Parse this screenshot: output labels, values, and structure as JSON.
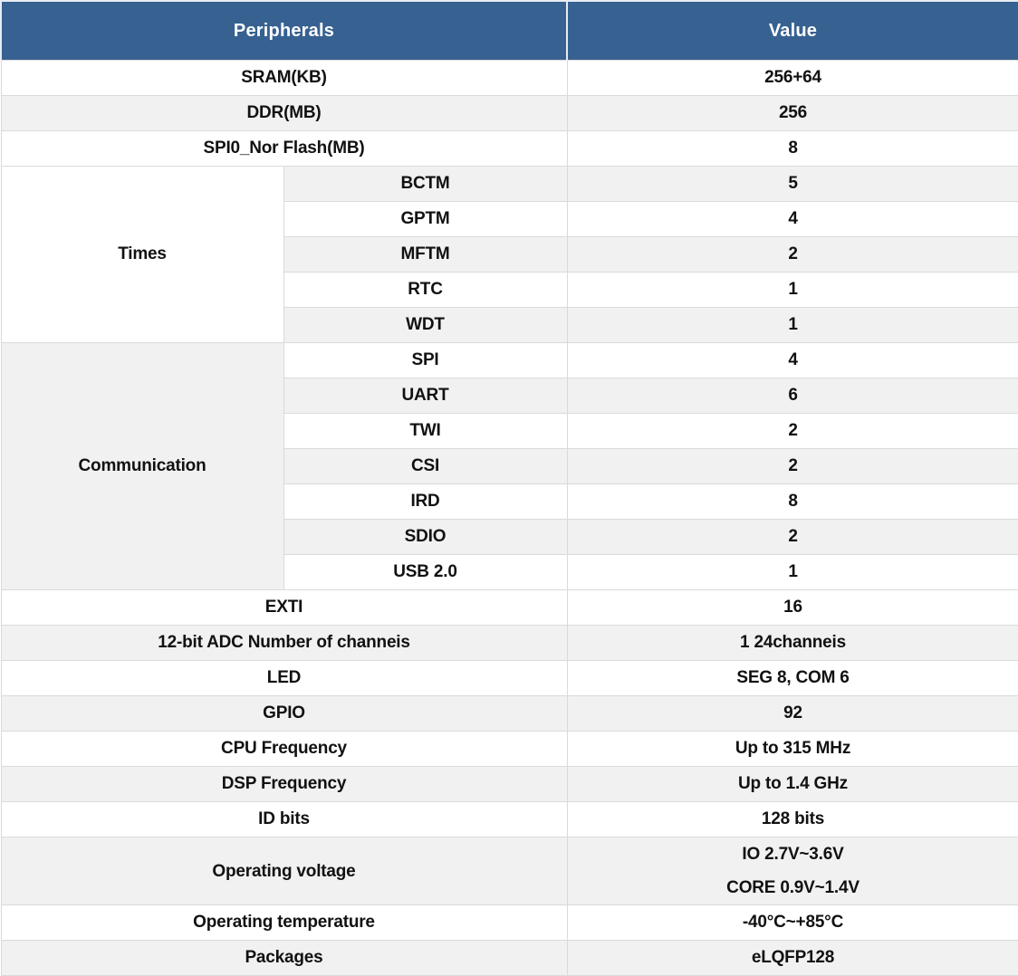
{
  "table": {
    "header": {
      "peripherals_label": "Peripherals",
      "value_label": "Value"
    },
    "rows": [
      {
        "shade": false,
        "cells": [
          {
            "text": "SRAM(KB)",
            "colspan": 2,
            "name": "row-label-sram"
          },
          {
            "text": "256+64",
            "name": "value-cell"
          }
        ]
      },
      {
        "shade": true,
        "cells": [
          {
            "text": "DDR(MB)",
            "colspan": 2,
            "name": "row-label-ddr"
          },
          {
            "text": "256",
            "name": "value-cell"
          }
        ]
      },
      {
        "shade": false,
        "cells": [
          {
            "text": "SPI0_Nor Flash(MB)",
            "colspan": 2,
            "name": "row-label-spi0-nor-flash"
          },
          {
            "text": "8",
            "name": "value-cell"
          }
        ]
      },
      {
        "shade": true,
        "cells": [
          {
            "text": "Times",
            "rowspan": 5,
            "bg": "white",
            "name": "group-cell-times"
          },
          {
            "text": "BCTM",
            "name": "row-label-bctm"
          },
          {
            "text": "5",
            "name": "value-cell"
          }
        ]
      },
      {
        "shade": false,
        "cells": [
          {
            "text": "GPTM",
            "name": "row-label-gptm"
          },
          {
            "text": "4",
            "name": "value-cell"
          }
        ]
      },
      {
        "shade": true,
        "cells": [
          {
            "text": "MFTM",
            "name": "row-label-mftm"
          },
          {
            "text": "2",
            "name": "value-cell"
          }
        ]
      },
      {
        "shade": false,
        "cells": [
          {
            "text": "RTC",
            "name": "row-label-rtc"
          },
          {
            "text": "1",
            "name": "value-cell"
          }
        ]
      },
      {
        "shade": true,
        "cells": [
          {
            "text": "WDT",
            "name": "row-label-wdt"
          },
          {
            "text": "1",
            "name": "value-cell"
          }
        ]
      },
      {
        "shade": false,
        "cells": [
          {
            "text": "Communication",
            "rowspan": 7,
            "bg": "gray",
            "name": "group-cell-communication"
          },
          {
            "text": "SPI",
            "name": "row-label-spi"
          },
          {
            "text": "4",
            "name": "value-cell"
          }
        ]
      },
      {
        "shade": true,
        "cells": [
          {
            "text": "UART",
            "name": "row-label-uart"
          },
          {
            "text": "6",
            "name": "value-cell"
          }
        ]
      },
      {
        "shade": false,
        "cells": [
          {
            "text": "TWI",
            "name": "row-label-twi"
          },
          {
            "text": "2",
            "name": "value-cell"
          }
        ]
      },
      {
        "shade": true,
        "cells": [
          {
            "text": "CSI",
            "name": "row-label-csi"
          },
          {
            "text": "2",
            "name": "value-cell"
          }
        ]
      },
      {
        "shade": false,
        "cells": [
          {
            "text": "IRD",
            "name": "row-label-ird"
          },
          {
            "text": "8",
            "name": "value-cell"
          }
        ]
      },
      {
        "shade": true,
        "cells": [
          {
            "text": "SDIO",
            "name": "row-label-sdio"
          },
          {
            "text": "2",
            "name": "value-cell"
          }
        ]
      },
      {
        "shade": false,
        "cells": [
          {
            "text": "USB 2.0",
            "name": "row-label-usb"
          },
          {
            "text": "1",
            "name": "value-cell"
          }
        ]
      },
      {
        "shade": false,
        "cells": [
          {
            "text": "EXTI",
            "colspan": 2,
            "name": "row-label-exti"
          },
          {
            "text": "16",
            "name": "value-cell"
          }
        ]
      },
      {
        "shade": true,
        "cells": [
          {
            "text": "12-bit ADC Number of channeis",
            "colspan": 2,
            "name": "row-label-adc-channels"
          },
          {
            "text": "1 24channeis",
            "name": "value-cell"
          }
        ]
      },
      {
        "shade": false,
        "cells": [
          {
            "text": "LED",
            "colspan": 2,
            "name": "row-label-led"
          },
          {
            "text": "SEG 8, COM 6",
            "name": "value-cell"
          }
        ]
      },
      {
        "shade": true,
        "cells": [
          {
            "text": "GPIO",
            "colspan": 2,
            "name": "row-label-gpio"
          },
          {
            "text": "92",
            "name": "value-cell"
          }
        ]
      },
      {
        "shade": false,
        "cells": [
          {
            "text": "CPU Frequency",
            "colspan": 2,
            "name": "row-label-cpu-frequency"
          },
          {
            "text": "Up to 315 MHz",
            "name": "value-cell"
          }
        ]
      },
      {
        "shade": true,
        "cells": [
          {
            "text": "DSP Frequency",
            "colspan": 2,
            "name": "row-label-dsp-frequency"
          },
          {
            "text": "Up to 1.4 GHz",
            "name": "value-cell"
          }
        ]
      },
      {
        "shade": false,
        "cells": [
          {
            "text": "ID bits",
            "colspan": 2,
            "name": "row-label-id-bits"
          },
          {
            "text": "128 bits",
            "name": "value-cell"
          }
        ]
      },
      {
        "shade": true,
        "tall": true,
        "cells": [
          {
            "text": "Operating voltage",
            "colspan": 2,
            "name": "row-label-operating-voltage"
          },
          {
            "text": [
              "IO 2.7V~3.6V",
              "CORE 0.9V~1.4V"
            ],
            "name": "value-cell"
          }
        ]
      },
      {
        "shade": false,
        "cells": [
          {
            "text": "Operating temperature",
            "colspan": 2,
            "name": "row-label-operating-temperature"
          },
          {
            "text": "-40°C~+85°C",
            "name": "value-cell"
          }
        ]
      },
      {
        "shade": true,
        "cells": [
          {
            "text": "Packages",
            "colspan": 2,
            "name": "row-label-packages"
          },
          {
            "text": "eLQFP128",
            "name": "value-cell"
          }
        ]
      }
    ]
  },
  "colors": {
    "header_bg": "#376191",
    "header_text": "#ffffff",
    "stripe": "#f1f1f1",
    "row_bg": "#ffffff",
    "border": "#dadada",
    "text": "#111111"
  }
}
